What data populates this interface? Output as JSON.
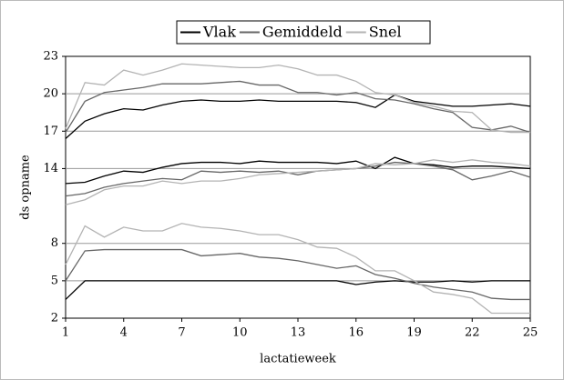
{
  "chart_data": {
    "type": "line",
    "x_label": "lactatieweek",
    "y_label": "ds opname",
    "x": [
      1,
      2,
      3,
      4,
      5,
      6,
      7,
      8,
      9,
      10,
      11,
      12,
      13,
      14,
      15,
      16,
      17,
      18,
      19,
      20,
      21,
      22,
      23,
      24,
      25
    ],
    "xlim": [
      1,
      25
    ],
    "xticks": [
      1,
      4,
      7,
      10,
      13,
      16,
      19,
      22,
      25
    ],
    "ylim": [
      2,
      23
    ],
    "yticks": [
      2,
      5,
      8,
      14,
      17,
      20,
      23
    ],
    "grid": true,
    "series": [
      {
        "name": "Vlak",
        "color": "#000000",
        "lines": [
          [
            16.4,
            17.8,
            18.4,
            18.8,
            18.7,
            19.1,
            19.4,
            19.5,
            19.4,
            19.4,
            19.5,
            19.4,
            19.4,
            19.4,
            19.4,
            19.3,
            18.9,
            19.9,
            19.4,
            19.2,
            19.0,
            19.0,
            19.1,
            19.2,
            19.0
          ],
          [
            12.8,
            12.9,
            13.4,
            13.8,
            13.7,
            14.1,
            14.4,
            14.5,
            14.5,
            14.4,
            14.6,
            14.5,
            14.5,
            14.5,
            14.4,
            14.6,
            14.0,
            14.9,
            14.4,
            14.3,
            14.1,
            14.2,
            14.2,
            14.1,
            14.0
          ],
          [
            3.5,
            5.0,
            5.0,
            5.0,
            5.0,
            5.0,
            5.0,
            5.0,
            5.0,
            5.0,
            5.0,
            5.0,
            5.0,
            5.0,
            5.0,
            4.7,
            4.9,
            5.0,
            4.9,
            4.9,
            5.0,
            4.9,
            5.0,
            5.0,
            5.0
          ]
        ]
      },
      {
        "name": "Gemiddeld",
        "color": "#666666",
        "lines": [
          [
            16.9,
            19.4,
            20.1,
            20.3,
            20.5,
            20.8,
            20.8,
            20.8,
            20.9,
            21.0,
            20.7,
            20.7,
            20.1,
            20.1,
            19.9,
            20.1,
            19.6,
            19.5,
            19.2,
            18.8,
            18.5,
            17.3,
            17.1,
            17.4,
            16.9
          ],
          [
            11.8,
            12.0,
            12.5,
            12.8,
            13.0,
            13.2,
            13.1,
            13.8,
            13.7,
            13.8,
            13.7,
            13.8,
            13.5,
            13.8,
            13.9,
            14.0,
            14.2,
            14.5,
            14.4,
            14.2,
            13.9,
            13.1,
            13.4,
            13.8,
            13.3
          ],
          [
            5.0,
            7.4,
            7.5,
            7.5,
            7.5,
            7.5,
            7.5,
            7.0,
            7.1,
            7.2,
            6.9,
            6.8,
            6.6,
            6.3,
            6.0,
            6.2,
            5.5,
            5.2,
            4.8,
            4.5,
            4.3,
            4.1,
            3.6,
            3.5,
            3.5
          ]
        ]
      },
      {
        "name": "Snel",
        "color": "#b3b3b3",
        "lines": [
          [
            17.2,
            20.9,
            20.7,
            21.9,
            21.5,
            21.9,
            22.4,
            22.3,
            22.2,
            22.1,
            22.1,
            22.3,
            22.0,
            21.5,
            21.5,
            21.0,
            20.1,
            19.9,
            19.3,
            19.0,
            18.6,
            18.5,
            17.1,
            16.9,
            16.9
          ],
          [
            11.1,
            11.5,
            12.3,
            12.6,
            12.6,
            13.0,
            12.8,
            13.0,
            13.0,
            13.2,
            13.5,
            13.6,
            13.7,
            13.8,
            13.9,
            14.0,
            14.4,
            14.3,
            14.4,
            14.7,
            14.5,
            14.7,
            14.5,
            14.4,
            14.2
          ],
          [
            6.3,
            9.4,
            8.5,
            9.3,
            9.0,
            9.0,
            9.6,
            9.3,
            9.2,
            9.0,
            8.7,
            8.7,
            8.3,
            7.7,
            7.6,
            6.9,
            5.8,
            5.8,
            5.0,
            4.1,
            3.9,
            3.6,
            2.4,
            2.4,
            2.4
          ]
        ]
      }
    ]
  }
}
